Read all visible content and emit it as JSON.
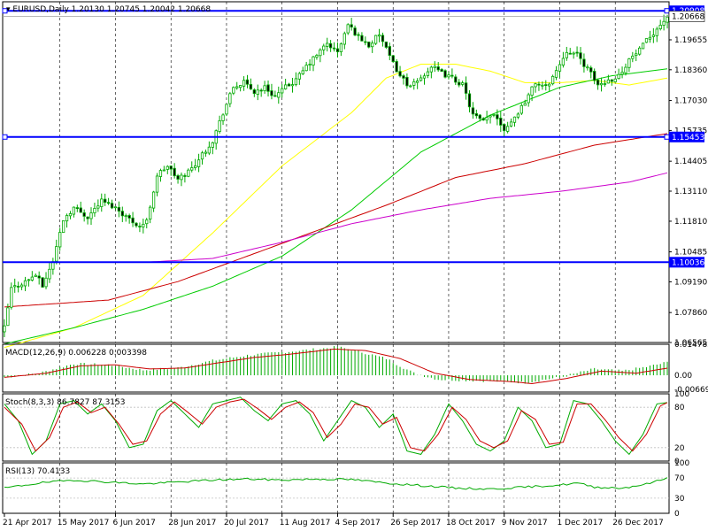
{
  "chart_data": [
    {
      "type": "candlestick",
      "symbol_label": "EURUSD,Daily",
      "ohlc_label": "1.20130 1.20745 1.20042 1.20668",
      "ylim": [
        1.06565,
        1.213
      ],
      "y_tick_labels": [
        "1.19655",
        "1.18360",
        "1.17030",
        "1.15735",
        "1.14405",
        "1.13110",
        "1.11810",
        "1.10485",
        "1.09190",
        "1.07860",
        "1.06565"
      ],
      "horizontal_lines": [
        {
          "price": 1.20908,
          "label": "1.20908",
          "style": "box-ends"
        },
        {
          "price": 1.15453,
          "label": "1.15453",
          "style": "box-ends"
        },
        {
          "price": 1.10036,
          "label": "1.10036",
          "style": "plain"
        }
      ],
      "current_price_label": "1.20668",
      "current_price": 1.20668,
      "x_tick_labels": [
        "21 Apr 2017",
        "15 May 2017",
        "6 Jun 2017",
        "28 Jun 2017",
        "20 Jul 2017",
        "11 Aug 2017",
        "4 Sep 2017",
        "26 Sep 2017",
        "18 Oct 2017",
        "9 Nov 2017",
        "1 Dec 2017",
        "26 Dec 2017"
      ],
      "x_grid_dates": [
        "2 May 2017",
        "24 May 2017",
        "15 Jun 2017",
        "7 Jul 2017",
        "31 Jul 2017",
        "22 Aug 2017",
        "13 Sep 2017",
        "5 Oct 2017",
        "27 Oct 2017",
        "20 Nov 2017",
        "12 Dec 2017"
      ],
      "close_anchors": [
        [
          0,
          1.072
        ],
        [
          2,
          1.089
        ],
        [
          6,
          1.092
        ],
        [
          9,
          1.095
        ],
        [
          11,
          1.09
        ],
        [
          14,
          1.101
        ],
        [
          17,
          1.119
        ],
        [
          20,
          1.124
        ],
        [
          24,
          1.12
        ],
        [
          28,
          1.127
        ],
        [
          32,
          1.124
        ],
        [
          36,
          1.119
        ],
        [
          39,
          1.116
        ],
        [
          41,
          1.118
        ],
        [
          44,
          1.138
        ],
        [
          47,
          1.142
        ],
        [
          50,
          1.136
        ],
        [
          54,
          1.141
        ],
        [
          57,
          1.147
        ],
        [
          60,
          1.153
        ],
        [
          63,
          1.165
        ],
        [
          66,
          1.176
        ],
        [
          69,
          1.178
        ],
        [
          72,
          1.174
        ],
        [
          75,
          1.176
        ],
        [
          78,
          1.172
        ],
        [
          81,
          1.176
        ],
        [
          84,
          1.179
        ],
        [
          87,
          1.185
        ],
        [
          90,
          1.19
        ],
        [
          93,
          1.195
        ],
        [
          96,
          1.191
        ],
        [
          99,
          1.203
        ],
        [
          102,
          1.198
        ],
        [
          105,
          1.194
        ],
        [
          108,
          1.199
        ],
        [
          111,
          1.189
        ],
        [
          114,
          1.181
        ],
        [
          117,
          1.176
        ],
        [
          120,
          1.18
        ],
        [
          123,
          1.185
        ],
        [
          126,
          1.182
        ],
        [
          129,
          1.18
        ],
        [
          132,
          1.177
        ],
        [
          135,
          1.164
        ],
        [
          138,
          1.161
        ],
        [
          141,
          1.165
        ],
        [
          144,
          1.158
        ],
        [
          147,
          1.163
        ],
        [
          150,
          1.17
        ],
        [
          153,
          1.178
        ],
        [
          156,
          1.176
        ],
        [
          159,
          1.183
        ],
        [
          162,
          1.192
        ],
        [
          165,
          1.19
        ],
        [
          168,
          1.184
        ],
        [
          171,
          1.177
        ],
        [
          174,
          1.179
        ],
        [
          177,
          1.181
        ],
        [
          180,
          1.188
        ],
        [
          183,
          1.192
        ],
        [
          186,
          1.198
        ],
        [
          189,
          1.203
        ],
        [
          191,
          1.2067
        ]
      ],
      "moving_averages": [
        {
          "name": "SMA 50",
          "color": "#ffff00",
          "anchors": [
            [
              0,
              1.0635
            ],
            [
              20,
              1.072
            ],
            [
              40,
              1.086
            ],
            [
              60,
              1.113
            ],
            [
              80,
              1.142
            ],
            [
              100,
              1.165
            ],
            [
              110,
              1.18
            ],
            [
              120,
              1.186
            ],
            [
              130,
              1.186
            ],
            [
              140,
              1.183
            ],
            [
              150,
              1.178
            ],
            [
              160,
              1.178
            ],
            [
              170,
              1.179
            ],
            [
              180,
              1.177
            ],
            [
              191,
              1.18
            ]
          ]
        },
        {
          "name": "SMA 100",
          "color": "#00cc00",
          "anchors": [
            [
              0,
              1.065
            ],
            [
              20,
              1.072
            ],
            [
              40,
              1.08
            ],
            [
              60,
              1.09
            ],
            [
              80,
              1.103
            ],
            [
              100,
              1.123
            ],
            [
              120,
              1.148
            ],
            [
              140,
              1.164
            ],
            [
              160,
              1.176
            ],
            [
              175,
              1.181
            ],
            [
              191,
              1.184
            ]
          ]
        },
        {
          "name": "SMA 200",
          "color": "#cc0000",
          "anchors": [
            [
              0,
              1.081
            ],
            [
              30,
              1.084
            ],
            [
              50,
              1.092
            ],
            [
              70,
              1.103
            ],
            [
              90,
              1.114
            ],
            [
              110,
              1.125
            ],
            [
              130,
              1.137
            ],
            [
              150,
              1.143
            ],
            [
              170,
              1.151
            ],
            [
              191,
              1.156
            ]
          ]
        },
        {
          "name": "SMA 365",
          "color": "#cc00cc",
          "anchors": [
            [
              40,
              1.1003
            ],
            [
              60,
              1.102
            ],
            [
              80,
              1.109
            ],
            [
              100,
              1.117
            ],
            [
              120,
              1.123
            ],
            [
              140,
              1.128
            ],
            [
              160,
              1.131
            ],
            [
              180,
              1.135
            ],
            [
              191,
              1.139
            ]
          ]
        }
      ]
    },
    {
      "type": "macd",
      "label": "MACD(12,26,9) 0.006228 0.003398",
      "ylim": [
        -0.008,
        0.0148
      ],
      "y_tick_labels": [
        "0.014782",
        "0.00",
        "-0.006694"
      ],
      "histogram_anchors": [
        [
          0,
          -0.001
        ],
        [
          10,
          0.001
        ],
        [
          20,
          0.0055
        ],
        [
          30,
          0.005
        ],
        [
          40,
          0.0025
        ],
        [
          50,
          0.0035
        ],
        [
          60,
          0.007
        ],
        [
          70,
          0.0095
        ],
        [
          80,
          0.011
        ],
        [
          90,
          0.0125
        ],
        [
          96,
          0.0135
        ],
        [
          102,
          0.0115
        ],
        [
          110,
          0.008
        ],
        [
          118,
          0.001
        ],
        [
          125,
          -0.002
        ],
        [
          135,
          -0.0025
        ],
        [
          145,
          -0.003
        ],
        [
          150,
          -0.0035
        ],
        [
          160,
          -0.001
        ],
        [
          170,
          0.003
        ],
        [
          178,
          0.002
        ],
        [
          185,
          0.004
        ],
        [
          191,
          0.0062
        ]
      ],
      "signal_anchors": [
        [
          0,
          -0.001
        ],
        [
          12,
          0.001
        ],
        [
          22,
          0.0045
        ],
        [
          32,
          0.005
        ],
        [
          42,
          0.003
        ],
        [
          52,
          0.0035
        ],
        [
          62,
          0.006
        ],
        [
          72,
          0.0085
        ],
        [
          82,
          0.01
        ],
        [
          95,
          0.0125
        ],
        [
          104,
          0.0118
        ],
        [
          114,
          0.008
        ],
        [
          124,
          0.001
        ],
        [
          134,
          -0.002
        ],
        [
          146,
          -0.003
        ],
        [
          152,
          -0.004
        ],
        [
          162,
          -0.0015
        ],
        [
          172,
          0.002
        ],
        [
          182,
          0.001
        ],
        [
          191,
          0.0034
        ]
      ]
    },
    {
      "type": "stochastic",
      "label": "Stoch(8,3,3) 86.7827 87.3153",
      "ylim": [
        0,
        100
      ],
      "y_tick_labels": [
        "100",
        "80",
        "20",
        "0"
      ],
      "main_anchors": [
        [
          0,
          85
        ],
        [
          4,
          60
        ],
        [
          8,
          10
        ],
        [
          12,
          30
        ],
        [
          16,
          85
        ],
        [
          20,
          90
        ],
        [
          24,
          70
        ],
        [
          28,
          85
        ],
        [
          32,
          60
        ],
        [
          36,
          20
        ],
        [
          40,
          25
        ],
        [
          44,
          75
        ],
        [
          48,
          90
        ],
        [
          52,
          70
        ],
        [
          56,
          50
        ],
        [
          60,
          85
        ],
        [
          64,
          90
        ],
        [
          68,
          95
        ],
        [
          72,
          75
        ],
        [
          76,
          60
        ],
        [
          80,
          85
        ],
        [
          84,
          90
        ],
        [
          88,
          70
        ],
        [
          92,
          30
        ],
        [
          96,
          60
        ],
        [
          100,
          90
        ],
        [
          104,
          80
        ],
        [
          108,
          50
        ],
        [
          112,
          70
        ],
        [
          116,
          15
        ],
        [
          120,
          10
        ],
        [
          124,
          40
        ],
        [
          128,
          85
        ],
        [
          132,
          60
        ],
        [
          136,
          25
        ],
        [
          140,
          15
        ],
        [
          144,
          30
        ],
        [
          148,
          80
        ],
        [
          152,
          60
        ],
        [
          156,
          20
        ],
        [
          160,
          25
        ],
        [
          164,
          90
        ],
        [
          168,
          85
        ],
        [
          172,
          60
        ],
        [
          176,
          30
        ],
        [
          180,
          10
        ],
        [
          184,
          40
        ],
        [
          188,
          85
        ],
        [
          191,
          87
        ]
      ],
      "signal_anchors": [
        [
          0,
          80
        ],
        [
          5,
          55
        ],
        [
          9,
          15
        ],
        [
          13,
          35
        ],
        [
          17,
          80
        ],
        [
          21,
          88
        ],
        [
          25,
          72
        ],
        [
          29,
          80
        ],
        [
          33,
          55
        ],
        [
          37,
          25
        ],
        [
          41,
          30
        ],
        [
          45,
          70
        ],
        [
          49,
          88
        ],
        [
          53,
          72
        ],
        [
          57,
          55
        ],
        [
          61,
          80
        ],
        [
          65,
          88
        ],
        [
          69,
          92
        ],
        [
          73,
          78
        ],
        [
          77,
          62
        ],
        [
          81,
          80
        ],
        [
          85,
          88
        ],
        [
          89,
          72
        ],
        [
          93,
          35
        ],
        [
          97,
          55
        ],
        [
          101,
          85
        ],
        [
          105,
          80
        ],
        [
          109,
          55
        ],
        [
          113,
          65
        ],
        [
          117,
          20
        ],
        [
          121,
          15
        ],
        [
          125,
          40
        ],
        [
          129,
          80
        ],
        [
          133,
          62
        ],
        [
          137,
          30
        ],
        [
          141,
          20
        ],
        [
          145,
          30
        ],
        [
          149,
          75
        ],
        [
          153,
          62
        ],
        [
          157,
          25
        ],
        [
          161,
          28
        ],
        [
          165,
          85
        ],
        [
          169,
          85
        ],
        [
          173,
          62
        ],
        [
          177,
          35
        ],
        [
          181,
          15
        ],
        [
          185,
          40
        ],
        [
          189,
          82
        ],
        [
          191,
          87
        ]
      ]
    },
    {
      "type": "rsi",
      "label": "RSI(13) 70.4133",
      "ylim": [
        0,
        100
      ],
      "y_tick_labels": [
        "100",
        "70",
        "30",
        "0"
      ],
      "anchors": [
        [
          0,
          50
        ],
        [
          10,
          60
        ],
        [
          20,
          66
        ],
        [
          30,
          62
        ],
        [
          40,
          58
        ],
        [
          50,
          62
        ],
        [
          60,
          66
        ],
        [
          70,
          68
        ],
        [
          80,
          66
        ],
        [
          90,
          68
        ],
        [
          100,
          67
        ],
        [
          110,
          60
        ],
        [
          120,
          55
        ],
        [
          130,
          50
        ],
        [
          140,
          48
        ],
        [
          150,
          52
        ],
        [
          160,
          56
        ],
        [
          165,
          60
        ],
        [
          170,
          52
        ],
        [
          178,
          50
        ],
        [
          185,
          58
        ],
        [
          191,
          70
        ]
      ]
    }
  ]
}
